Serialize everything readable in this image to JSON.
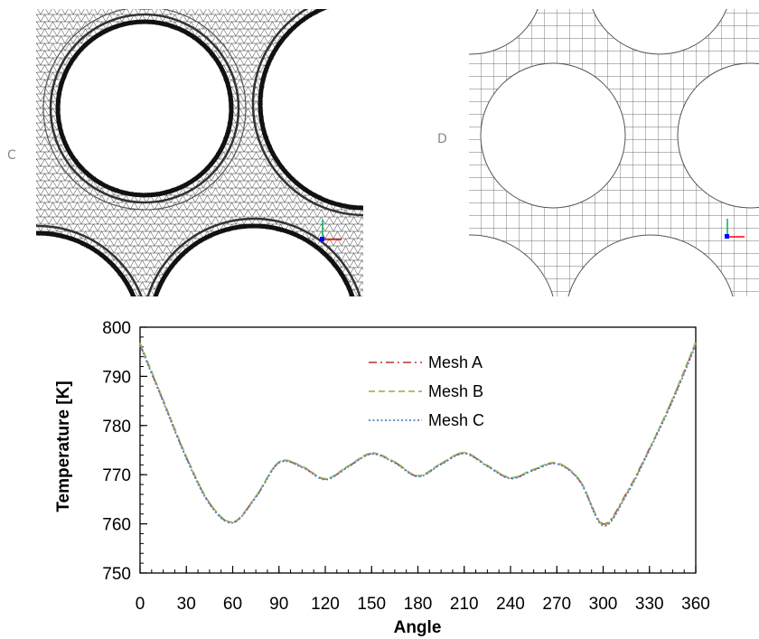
{
  "panels": [
    {
      "letter": "C",
      "mesh": "hybrid-boundary-layer-triangles"
    },
    {
      "letter": "D",
      "mesh": "quadrilateral-paved"
    }
  ],
  "colors": {
    "mesh_a": "#c0504d",
    "mesh_b": "#9bbb59",
    "mesh_c": "#4f81bd",
    "axes": "#000000",
    "mesh_line": "#111111",
    "triad_x": "#ff0000",
    "triad_y": "#00b050",
    "triad_z": "#0000ff"
  },
  "chart_data": {
    "type": "line",
    "title": "",
    "xlabel": "Angle",
    "ylabel": "Temperature [K]",
    "xlim": [
      0,
      360
    ],
    "ylim": [
      750,
      800
    ],
    "xticks": [
      0,
      30,
      60,
      90,
      120,
      150,
      180,
      210,
      240,
      270,
      300,
      330,
      360
    ],
    "yticks": [
      750,
      760,
      770,
      780,
      790,
      800
    ],
    "grid": false,
    "legend_position": "top-center",
    "x": [
      0,
      15,
      30,
      45,
      60,
      75,
      90,
      105,
      120,
      135,
      150,
      165,
      180,
      195,
      210,
      225,
      240,
      255,
      270,
      285,
      300,
      315,
      330,
      345,
      360
    ],
    "series": [
      {
        "name": "Mesh A",
        "style": "dash-dot",
        "values": [
          796.5,
          785.0,
          773.5,
          764.2,
          760.3,
          765.5,
          772.5,
          771.6,
          769.1,
          771.7,
          774.3,
          772.5,
          769.7,
          772.2,
          774.4,
          771.8,
          769.3,
          771.0,
          772.3,
          768.7,
          760.0,
          766.2,
          775.3,
          785.3,
          796.7
        ]
      },
      {
        "name": "Mesh B",
        "style": "dashed",
        "values": [
          796.8,
          785.2,
          773.7,
          764.3,
          760.4,
          765.6,
          772.6,
          771.7,
          769.2,
          771.8,
          774.4,
          772.6,
          769.8,
          772.3,
          774.5,
          771.9,
          769.4,
          771.1,
          772.4,
          768.8,
          759.8,
          766.0,
          775.2,
          785.5,
          797.0
        ]
      },
      {
        "name": "Mesh C",
        "style": "dotted",
        "values": [
          796.3,
          784.8,
          773.3,
          764.0,
          760.2,
          765.4,
          772.4,
          771.5,
          769.0,
          771.6,
          774.2,
          772.4,
          769.6,
          772.1,
          774.3,
          771.7,
          769.2,
          770.9,
          772.2,
          768.6,
          759.6,
          765.8,
          775.0,
          785.0,
          796.4
        ]
      }
    ]
  }
}
